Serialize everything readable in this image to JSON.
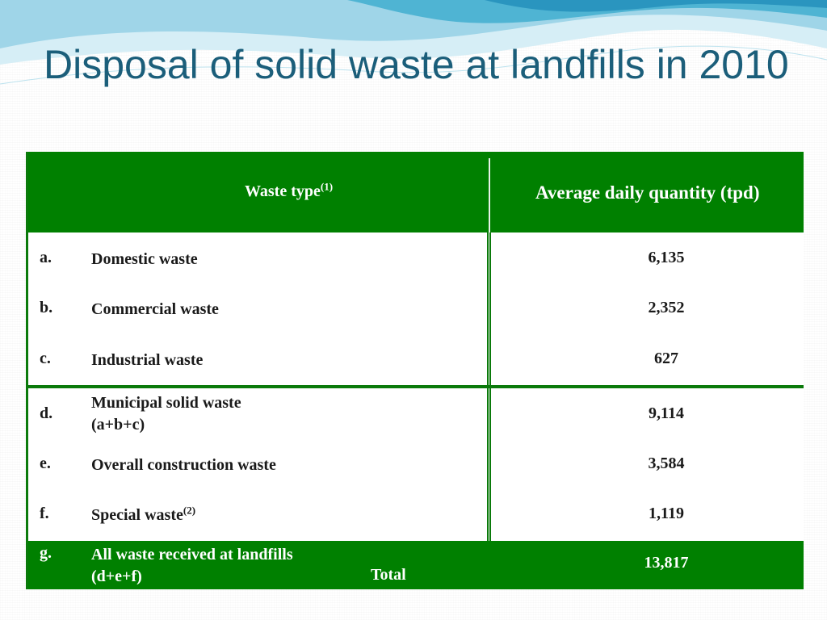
{
  "slide": {
    "title": "Disposal of solid waste at landfills in 2010",
    "colors": {
      "title": "#1b5e7a",
      "header_bg": "#008000",
      "text": "#1a1a1a"
    }
  },
  "table": {
    "header": {
      "waste_type": "Waste type",
      "waste_type_note": "(1)",
      "quantity": "Average daily quantity (tpd)"
    },
    "rows": [
      {
        "letter": "a.",
        "label": "Domestic waste",
        "value": "6,135"
      },
      {
        "letter": "b.",
        "label": "Commercial waste",
        "value": "2,352"
      },
      {
        "letter": "c.",
        "label": "Industrial waste",
        "value": "627"
      },
      {
        "letter": "d.",
        "label_line1": "Municipal solid waste",
        "label_line2": "(a+b+c)",
        "value": "9,114"
      },
      {
        "letter": "e.",
        "label": "Overall construction waste",
        "value": "3,584"
      },
      {
        "letter": "f.",
        "label": "Special waste",
        "note": "(2)",
        "value": "1,119"
      }
    ],
    "total": {
      "letter": "g.",
      "label_line1": "All waste received at landfills",
      "label_line2": "(d+e+f)",
      "total_label": "Total",
      "value": "13,817"
    }
  }
}
